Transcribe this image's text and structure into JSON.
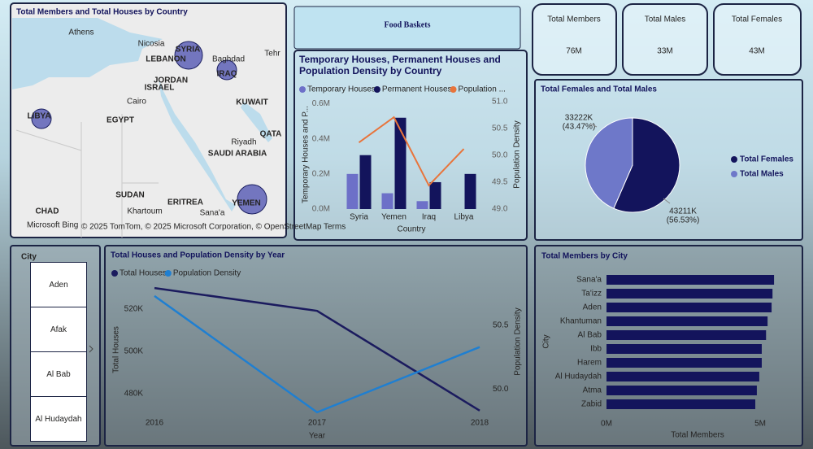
{
  "header": {
    "title": "Food Baskets"
  },
  "kpis": [
    {
      "label": "Total Members",
      "value": "76M"
    },
    {
      "label": "Total Males",
      "value": "33M"
    },
    {
      "label": "Total Females",
      "value": "43M"
    }
  ],
  "map": {
    "title": "Total Members and Total Houses by Country",
    "places": [
      "Athens",
      "Nicosia",
      "SYRIA",
      "LEBANON",
      "Baghdad",
      "IRAQ",
      "Tehr",
      "JORDAN",
      "ISRAEL",
      "Cairo",
      "KUWAIT",
      "LIBYA",
      "EGYPT",
      "Riyadh",
      "QATA",
      "SAUDI ARABIA",
      "SUDAN",
      "ERITREA",
      "CHAD",
      "Khartoum",
      "Sana'a",
      "YEMEN"
    ],
    "attribution": "© 2025 TomTom, © 2025 Microsoft Corporation, © OpenStreetMap Terms",
    "logo": "Microsoft Bing"
  },
  "slicer": {
    "title": "City",
    "items": [
      "Aden",
      "Afak",
      "Al Bab",
      "Al Hudaydah"
    ]
  },
  "chart_data": [
    {
      "type": "combo",
      "title": "Temporary Houses, Permanent Houses and Population Density by Country",
      "x_label": "Country",
      "y_label": "Temporary Houses and P...",
      "y2_label": "Population Density",
      "categories": [
        "Syria",
        "Yemen",
        "Iraq",
        "Libya"
      ],
      "series": [
        {
          "name": "Temporary Houses",
          "kind": "bar",
          "color": "#6d70c8",
          "values": [
            200000,
            90000,
            45000,
            null
          ]
        },
        {
          "name": "Permanent Houses",
          "kind": "bar",
          "color": "#13145c",
          "values": [
            307000,
            520000,
            153000,
            200000
          ]
        },
        {
          "name": "Population ...",
          "kind": "line",
          "axis": "y2",
          "color": "#e8743b",
          "values": [
            50.24,
            50.71,
            49.44,
            50.12
          ]
        }
      ],
      "ylim": [
        0,
        630000
      ],
      "yticks": [
        {
          "value": 0,
          "label": "0.0M"
        },
        {
          "value": 200000,
          "label": "0.2M"
        },
        {
          "value": 400000,
          "label": "0.4M"
        },
        {
          "value": 600000,
          "label": "0.6M"
        }
      ],
      "y2lim": [
        49.0,
        51.06
      ],
      "y2ticks": [
        {
          "value": 49,
          "label": "49.0"
        },
        49.5,
        {
          "value": 50,
          "label": "50.0"
        },
        50.5,
        {
          "value": 51,
          "label": "51.0"
        }
      ]
    },
    {
      "type": "pie",
      "title": "Total Females and Total Males",
      "categories": [
        "Total Females",
        "Total Males"
      ],
      "values": [
        43211,
        33222
      ],
      "value_labels": [
        "43211K",
        "33222K"
      ],
      "percent_labels": [
        "(56.53%)",
        "(43.47%)"
      ],
      "colors": [
        "#13145c",
        "#6e78c9"
      ]
    },
    {
      "type": "line",
      "title": "Total Houses and Population Density by Year",
      "x_label": "Year",
      "y_label": "Total Houses",
      "y2_label": "Population Density",
      "categories": [
        "2016",
        "2017",
        "2018"
      ],
      "series": [
        {
          "name": "Total Houses",
          "color": "#1b1b5e",
          "values": [
            530000,
            519200,
            472000
          ]
        },
        {
          "name": "Population Density",
          "axis": "y2",
          "color": "#1f7fd1",
          "values": [
            50.73,
            49.82,
            50.33
          ]
        }
      ],
      "ylim": [
        470000,
        533500
      ],
      "yticks": [
        {
          "value": 480000,
          "label": "480K"
        },
        {
          "value": 500000,
          "label": "500K"
        },
        {
          "value": 520000,
          "label": "520K"
        }
      ],
      "y2lim": [
        49.8,
        50.85
      ],
      "y2ticks": [
        {
          "value": 50,
          "label": "50.0"
        },
        50.5
      ]
    },
    {
      "type": "hbar",
      "title": "Total Members by City",
      "x_label": "Total Members",
      "y_label": "City",
      "categories": [
        "Sana'a",
        "Ta'izz",
        "Aden",
        "Khantuman",
        "Al Bab",
        "Ibb",
        "Harem",
        "Al Hudaydah",
        "Atma",
        "Zabid"
      ],
      "values": [
        5450000,
        5400000,
        5370000,
        5240000,
        5190000,
        5050000,
        5050000,
        4970000,
        4890000,
        4840000
      ],
      "color": "#13145c",
      "xlim": [
        0,
        5580000
      ],
      "xticks": [
        {
          "value": 0,
          "label": "0M"
        },
        {
          "value": 5000000,
          "label": "5M"
        }
      ]
    }
  ]
}
